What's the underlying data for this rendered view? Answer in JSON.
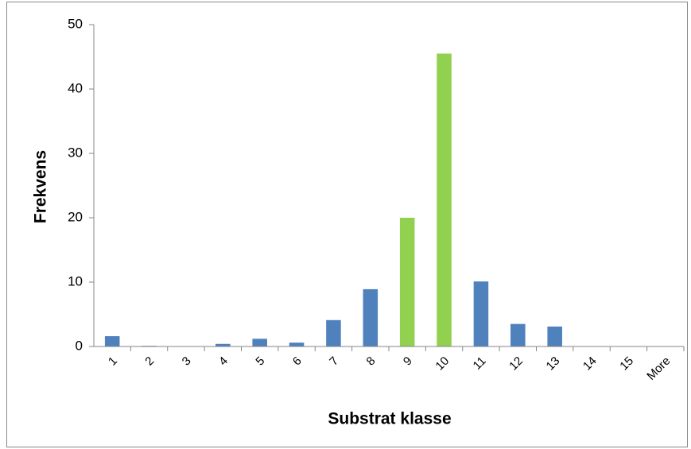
{
  "chart_data": {
    "type": "bar",
    "xlabel": "Substrat klasse",
    "ylabel": "Frekvens",
    "categories": [
      "1",
      "2",
      "3",
      "4",
      "5",
      "6",
      "7",
      "8",
      "9",
      "10",
      "11",
      "12",
      "13",
      "14",
      "15",
      "More"
    ],
    "values": [
      1.6,
      0.1,
      0,
      0.4,
      1.2,
      0.6,
      4.1,
      8.9,
      20,
      45.5,
      10.1,
      3.5,
      3.1,
      0,
      0,
      0
    ],
    "colors": [
      "#4f81bd",
      "#4f81bd",
      "#4f81bd",
      "#4f81bd",
      "#4f81bd",
      "#4f81bd",
      "#4f81bd",
      "#4f81bd",
      "#92d050",
      "#92d050",
      "#4f81bd",
      "#4f81bd",
      "#4f81bd",
      "#4f81bd",
      "#4f81bd",
      "#4f81bd"
    ],
    "ylim": [
      0,
      50
    ],
    "yticks": [
      0,
      10,
      20,
      30,
      40,
      50
    ],
    "grid": false
  }
}
